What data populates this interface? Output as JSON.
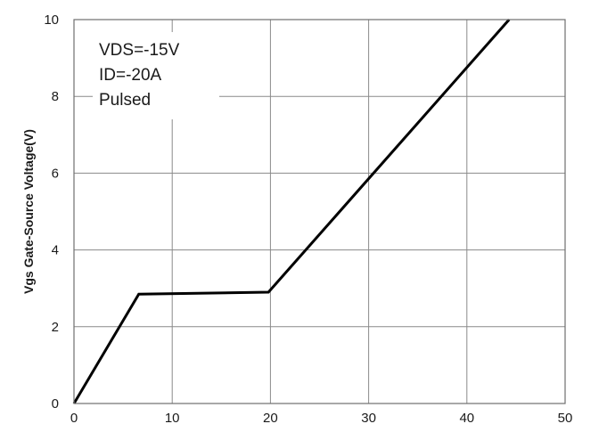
{
  "chart_data": {
    "type": "line",
    "title": "",
    "xlabel": "",
    "ylabel": "Vgs Gate-Source Voltage(V)",
    "xlim": [
      0,
      50
    ],
    "ylim": [
      0,
      10
    ],
    "x_ticks": [
      0,
      10,
      20,
      30,
      40,
      50
    ],
    "y_ticks": [
      0,
      2,
      4,
      6,
      8,
      10
    ],
    "grid": true,
    "series": [
      {
        "color": "#000000",
        "x": [
          0,
          6.6,
          19.8,
          44.3
        ],
        "y": [
          0,
          2.85,
          2.9,
          10
        ]
      }
    ],
    "annotations": [
      "VDS=-15V",
      "ID=-20A",
      "Pulsed"
    ]
  }
}
